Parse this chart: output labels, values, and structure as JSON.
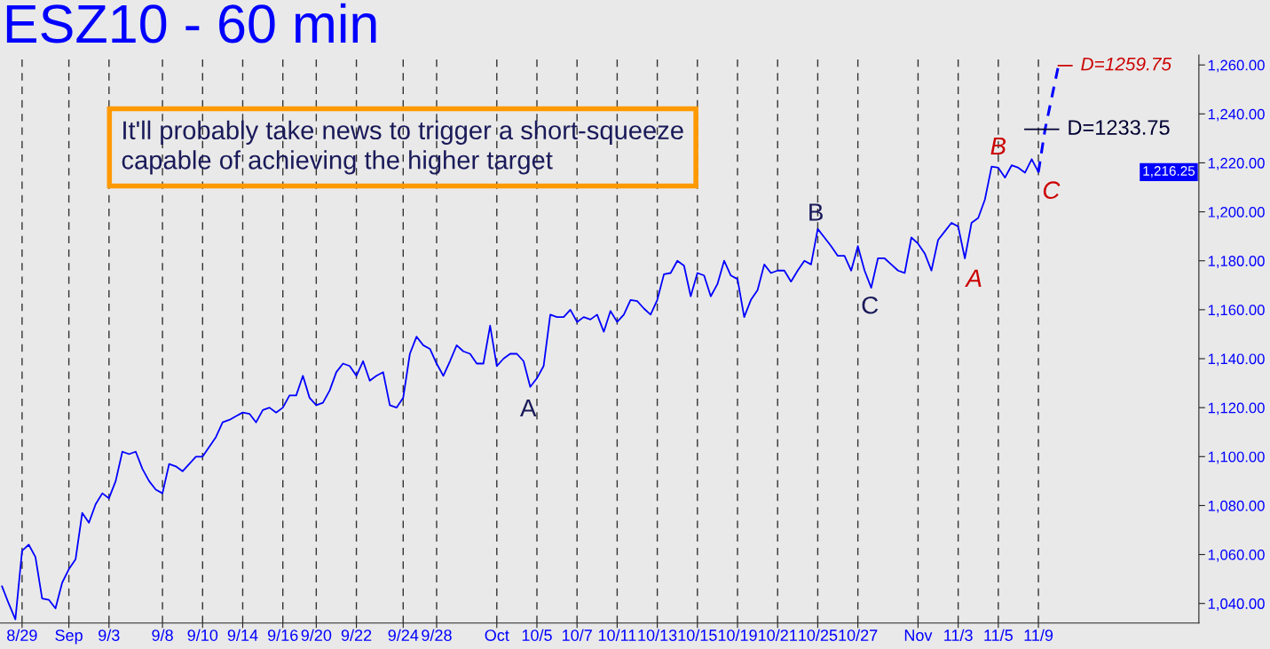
{
  "chart_data": {
    "type": "line",
    "title": "ESZ10 - 60 min",
    "categories": [
      null,
      null,
      null,
      "8/29",
      null,
      null,
      null,
      null,
      null,
      null,
      "Sep",
      null,
      null,
      null,
      null,
      null,
      "9/3",
      null,
      null,
      null,
      null,
      null,
      null,
      null,
      "9/8",
      null,
      null,
      null,
      null,
      null,
      "9/10",
      null,
      null,
      null,
      null,
      null,
      "9/14",
      null,
      null,
      null,
      null,
      null,
      "9/16",
      null,
      null,
      null,
      null,
      "9/20",
      null,
      null,
      null,
      null,
      null,
      "9/22",
      null,
      null,
      null,
      null,
      null,
      null,
      "9/24",
      null,
      null,
      null,
      null,
      "9/28",
      null,
      null,
      null,
      null,
      null,
      null,
      null,
      null,
      "Oct",
      null,
      null,
      null,
      null,
      null,
      "10/5",
      null,
      null,
      null,
      null,
      null,
      "10/7",
      null,
      null,
      null,
      null,
      null,
      "10/11",
      null,
      null,
      null,
      null,
      null,
      "10/13",
      null,
      null,
      null,
      null,
      null,
      "10/15",
      null,
      null,
      null,
      null,
      null,
      "10/19",
      null,
      null,
      null,
      null,
      null,
      "10/21",
      null,
      null,
      null,
      null,
      null,
      "10/25",
      null,
      null,
      null,
      null,
      null,
      "10/27",
      null,
      null,
      null,
      null,
      null,
      null,
      null,
      null,
      "Nov",
      null,
      null,
      null,
      null,
      null,
      "11/3",
      null,
      null,
      null,
      null,
      null,
      "11/5",
      null,
      null,
      null,
      null,
      null,
      "11/9",
      null,
      null,
      null,
      null,
      null,
      null
    ],
    "ylim": [
      1032,
      1264
    ],
    "yticks": [
      {
        "value": 1040,
        "label": "1,040.00"
      },
      {
        "value": 1060,
        "label": "1,060.00"
      },
      {
        "value": 1080,
        "label": "1,080.00"
      },
      {
        "value": 1100,
        "label": "1,100.00"
      },
      {
        "value": 1120,
        "label": "1,120.00"
      },
      {
        "value": 1140,
        "label": "1,140.00"
      },
      {
        "value": 1160,
        "label": "1,160.00"
      },
      {
        "value": 1180,
        "label": "1,180.00"
      },
      {
        "value": 1200,
        "label": "1,200.00"
      },
      {
        "value": 1220,
        "label": "1,220.00"
      },
      {
        "value": 1240,
        "label": "1,240.00"
      },
      {
        "value": 1260,
        "label": "1,260.00"
      }
    ],
    "grid": "x",
    "series": [
      {
        "color": "#0000ff",
        "values": [
          1047,
          1040,
          1033.5,
          1061.5,
          1064,
          1059,
          1042,
          1041.5,
          1038,
          1048.5,
          1054,
          1058,
          1077,
          1073,
          1080.5,
          1085,
          1083,
          1090,
          1102,
          1101,
          1102,
          1095,
          1090,
          1086.5,
          1085,
          1097,
          1096,
          1094,
          1097,
          1100,
          1100,
          1104,
          1108,
          1114,
          1115,
          1116.5,
          1118,
          1117.5,
          1114,
          1119,
          1120,
          1118,
          1120,
          1125,
          1125,
          1133,
          1124,
          1121,
          1122,
          1127,
          1134.5,
          1138,
          1137,
          1133,
          1139,
          1131,
          1133,
          1134.5,
          1121,
          1120,
          1124,
          1142,
          1149,
          1145.5,
          1144,
          1138,
          1133,
          1139,
          1145.5,
          1143,
          1142,
          1138,
          1138,
          1153.5,
          1137,
          1140,
          1142,
          1142,
          1139,
          1128.5,
          1132,
          1137,
          1158,
          1157,
          1157,
          1160,
          1155,
          1157,
          1156,
          1158,
          1151,
          1159.5,
          1155,
          1158,
          1164,
          1163.5,
          1160.5,
          1158,
          1164,
          1174.5,
          1175,
          1180,
          1178,
          1165.5,
          1175,
          1174,
          1165.5,
          1170.5,
          1180,
          1174,
          1172.5,
          1157,
          1164,
          1168,
          1178.5,
          1175,
          1176,
          1176,
          1171.5,
          1176,
          1180,
          1178.5,
          1193,
          1189.5,
          1186,
          1182,
          1182,
          1176,
          1186,
          1176,
          1169,
          1181,
          1181,
          1178.5,
          1176,
          1175,
          1189.5,
          1187,
          1183,
          1176,
          1188.5,
          1192,
          1195.5,
          1194,
          1181,
          1195.5,
          1197.5,
          1205,
          1218.5,
          1218,
          1214,
          1219,
          1218,
          1216,
          1221.5,
          1216.25,
          null,
          null,
          null,
          null,
          null,
          null
        ]
      },
      {
        "color": "#0000ff",
        "line_style": "dashed",
        "values": [
          null,
          null,
          null,
          null,
          null,
          null,
          null,
          null,
          null,
          null,
          null,
          null,
          null,
          null,
          null,
          null,
          null,
          null,
          null,
          null,
          null,
          null,
          null,
          null,
          null,
          null,
          null,
          null,
          null,
          null,
          null,
          null,
          null,
          null,
          null,
          null,
          null,
          null,
          null,
          null,
          null,
          null,
          null,
          null,
          null,
          null,
          null,
          null,
          null,
          null,
          null,
          null,
          null,
          null,
          null,
          null,
          null,
          null,
          null,
          null,
          null,
          null,
          null,
          null,
          null,
          null,
          null,
          null,
          null,
          null,
          null,
          null,
          null,
          null,
          null,
          null,
          null,
          null,
          null,
          null,
          null,
          null,
          null,
          null,
          null,
          null,
          null,
          null,
          null,
          null,
          null,
          null,
          null,
          null,
          null,
          null,
          null,
          null,
          null,
          null,
          null,
          null,
          null,
          null,
          null,
          null,
          null,
          null,
          null,
          null,
          null,
          null,
          null,
          null,
          null,
          null,
          null,
          null,
          null,
          null,
          null,
          null,
          null,
          null,
          null,
          null,
          null,
          null,
          null,
          null,
          null,
          null,
          null,
          null,
          null,
          null,
          null,
          null,
          null,
          null,
          null,
          null,
          null,
          null,
          null,
          null,
          null,
          null,
          null,
          null,
          null,
          null,
          null,
          null,
          null,
          1216.25,
          1233.75,
          null,
          1259.75,
          null,
          null,
          null
        ]
      },
      {
        "color": "#000033",
        "values": [
          null,
          null,
          null,
          null,
          null,
          null,
          null,
          null,
          null,
          null,
          null,
          null,
          null,
          null,
          null,
          null,
          null,
          null,
          null,
          null,
          null,
          null,
          null,
          null,
          null,
          null,
          null,
          null,
          null,
          null,
          null,
          null,
          null,
          null,
          null,
          null,
          null,
          null,
          null,
          null,
          null,
          null,
          null,
          null,
          null,
          null,
          null,
          null,
          null,
          null,
          null,
          null,
          null,
          null,
          null,
          null,
          null,
          null,
          null,
          null,
          null,
          null,
          null,
          null,
          null,
          null,
          null,
          null,
          null,
          null,
          null,
          null,
          null,
          null,
          null,
          null,
          null,
          null,
          null,
          null,
          null,
          null,
          null,
          null,
          null,
          null,
          null,
          null,
          null,
          null,
          null,
          null,
          null,
          null,
          null,
          null,
          null,
          null,
          null,
          null,
          null,
          null,
          null,
          null,
          null,
          null,
          null,
          null,
          null,
          null,
          null,
          null,
          null,
          null,
          null,
          null,
          null,
          null,
          null,
          null,
          null,
          null,
          null,
          null,
          null,
          null,
          null,
          null,
          null,
          null,
          null,
          null,
          null,
          null,
          null,
          null,
          null,
          null,
          null,
          null,
          null,
          null,
          null,
          null,
          null,
          null,
          null,
          null,
          null,
          null,
          null,
          null,
          null,
          1233.75,
          1233.75,
          1233.75,
          1233.75,
          1233.75,
          1233.75,
          null,
          null,
          null
        ]
      },
      {
        "color": "#cc0000",
        "values": [
          null,
          null,
          null,
          null,
          null,
          null,
          null,
          null,
          null,
          null,
          null,
          null,
          null,
          null,
          null,
          null,
          null,
          null,
          null,
          null,
          null,
          null,
          null,
          null,
          null,
          null,
          null,
          null,
          null,
          null,
          null,
          null,
          null,
          null,
          null,
          null,
          null,
          null,
          null,
          null,
          null,
          null,
          null,
          null,
          null,
          null,
          null,
          null,
          null,
          null,
          null,
          null,
          null,
          null,
          null,
          null,
          null,
          null,
          null,
          null,
          null,
          null,
          null,
          null,
          null,
          null,
          null,
          null,
          null,
          null,
          null,
          null,
          null,
          null,
          null,
          null,
          null,
          null,
          null,
          null,
          null,
          null,
          null,
          null,
          null,
          null,
          null,
          null,
          null,
          null,
          null,
          null,
          null,
          null,
          null,
          null,
          null,
          null,
          null,
          null,
          null,
          null,
          null,
          null,
          null,
          null,
          null,
          null,
          null,
          null,
          null,
          null,
          null,
          null,
          null,
          null,
          null,
          null,
          null,
          null,
          null,
          null,
          null,
          null,
          null,
          null,
          null,
          null,
          null,
          null,
          null,
          null,
          null,
          null,
          null,
          null,
          null,
          null,
          null,
          null,
          null,
          null,
          null,
          null,
          null,
          null,
          null,
          null,
          null,
          null,
          null,
          null,
          null,
          null,
          null,
          null,
          null,
          null,
          1259.75,
          1259.75,
          1259.75,
          null
        ]
      }
    ],
    "annotations": [
      "It'll probably take news to trigger a short-squeeze\ncapable of achieving the higher target",
      "A",
      "B",
      "C",
      "A",
      "B",
      "C",
      "D=1233.75",
      "D=1259.75",
      "1,216.25"
    ]
  }
}
